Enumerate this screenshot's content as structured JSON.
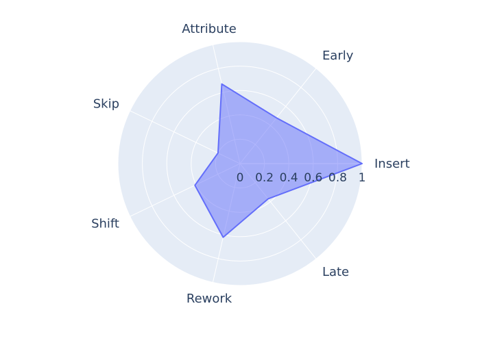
{
  "chart_data": {
    "type": "radar",
    "categories": [
      "Insert",
      "Early",
      "Attribute",
      "Skip",
      "Shift",
      "Rework",
      "Late"
    ],
    "series": [
      {
        "values": [
          1.0,
          0.48,
          0.67,
          0.2,
          0.41,
          0.62,
          0.37
        ]
      }
    ],
    "radial_range": [
      0,
      1
    ],
    "radial_ticks": [
      "0",
      "0.2",
      "0.4",
      "0.6",
      "0.8",
      "1"
    ],
    "grid": true,
    "colors": {
      "background": "#e5ecf6",
      "grid": "#ffffff",
      "fill": "#636efa",
      "line": "#636efa",
      "text": "#2a3f5f"
    }
  }
}
